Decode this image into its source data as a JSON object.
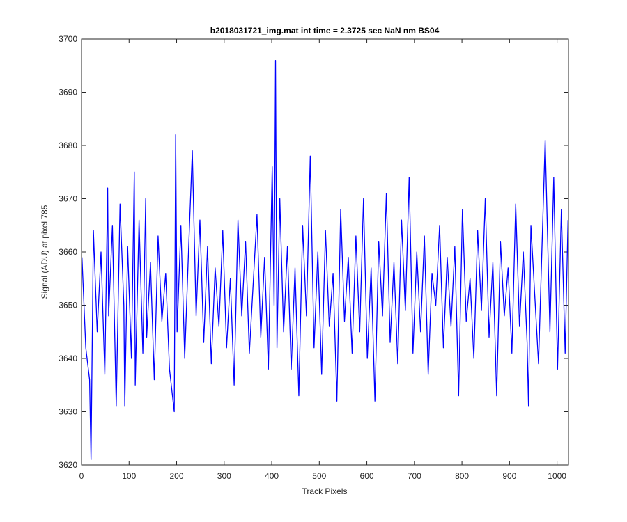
{
  "chart_data": {
    "type": "line",
    "title": "b2018031721_img.mat int time = 2.3725 sec  NaN nm BS04",
    "x_label": "Track Pixels",
    "y_label": "Signal (ADU) at pixel 785",
    "xlim": [
      0,
      1024
    ],
    "ylim": [
      3620,
      3700
    ],
    "xticks": [
      0,
      100,
      200,
      300,
      400,
      500,
      600,
      700,
      800,
      900,
      1000
    ],
    "yticks": [
      3620,
      3630,
      3640,
      3650,
      3660,
      3670,
      3680,
      3690,
      3700
    ],
    "grid": false,
    "x": [
      1,
      9,
      17,
      20,
      25,
      33,
      41,
      49,
      55,
      57,
      65,
      73,
      81,
      89,
      91,
      97,
      105,
      111,
      113,
      121,
      129,
      135,
      137,
      145,
      153,
      161,
      169,
      177,
      185,
      195,
      198,
      201,
      209,
      217,
      225,
      233,
      241,
      249,
      257,
      265,
      273,
      281,
      289,
      297,
      305,
      313,
      321,
      329,
      337,
      345,
      353,
      361,
      369,
      377,
      385,
      393,
      401,
      405,
      408,
      411,
      417,
      425,
      433,
      441,
      449,
      457,
      465,
      473,
      481,
      489,
      497,
      505,
      513,
      521,
      529,
      537,
      545,
      553,
      561,
      569,
      577,
      585,
      593,
      601,
      609,
      617,
      625,
      633,
      641,
      649,
      657,
      665,
      673,
      681,
      689,
      697,
      705,
      713,
      721,
      729,
      737,
      745,
      753,
      761,
      769,
      777,
      785,
      793,
      801,
      809,
      817,
      825,
      833,
      841,
      849,
      857,
      865,
      873,
      881,
      889,
      897,
      905,
      913,
      921,
      929,
      937,
      940,
      945,
      953,
      961,
      969,
      975,
      985,
      993,
      1001,
      1009,
      1017,
      1023
    ],
    "series": [
      {
        "color": "#0000ff",
        "values": [
          3659,
          3642,
          3636,
          3621,
          3664,
          3645,
          3660,
          3637,
          3672,
          3648,
          3665,
          3631,
          3669,
          3650,
          3631,
          3661,
          3640,
          3675,
          3635,
          3666,
          3641,
          3670,
          3644,
          3658,
          3636,
          3663,
          3647,
          3656,
          3638,
          3630,
          3682,
          3645,
          3665,
          3640,
          3660,
          3679,
          3648,
          3666,
          3643,
          3661,
          3639,
          3657,
          3646,
          3664,
          3642,
          3655,
          3635,
          3666,
          3648,
          3662,
          3641,
          3654,
          3667,
          3644,
          3659,
          3638,
          3676,
          3650,
          3696,
          3642,
          3670,
          3645,
          3661,
          3638,
          3657,
          3633,
          3665,
          3648,
          3678,
          3642,
          3660,
          3637,
          3664,
          3646,
          3656,
          3632,
          3668,
          3647,
          3659,
          3641,
          3663,
          3645,
          3670,
          3640,
          3657,
          3632,
          3662,
          3648,
          3671,
          3643,
          3658,
          3639,
          3666,
          3649,
          3674,
          3641,
          3660,
          3645,
          3663,
          3637,
          3656,
          3650,
          3665,
          3642,
          3659,
          3646,
          3661,
          3633,
          3668,
          3647,
          3655,
          3640,
          3664,
          3649,
          3670,
          3644,
          3658,
          3633,
          3662,
          3648,
          3657,
          3641,
          3669,
          3646,
          3660,
          3643,
          3631,
          3665,
          3652,
          3639,
          3663,
          3681,
          3645,
          3674,
          3638,
          3668,
          3641,
          3666
        ]
      }
    ]
  }
}
